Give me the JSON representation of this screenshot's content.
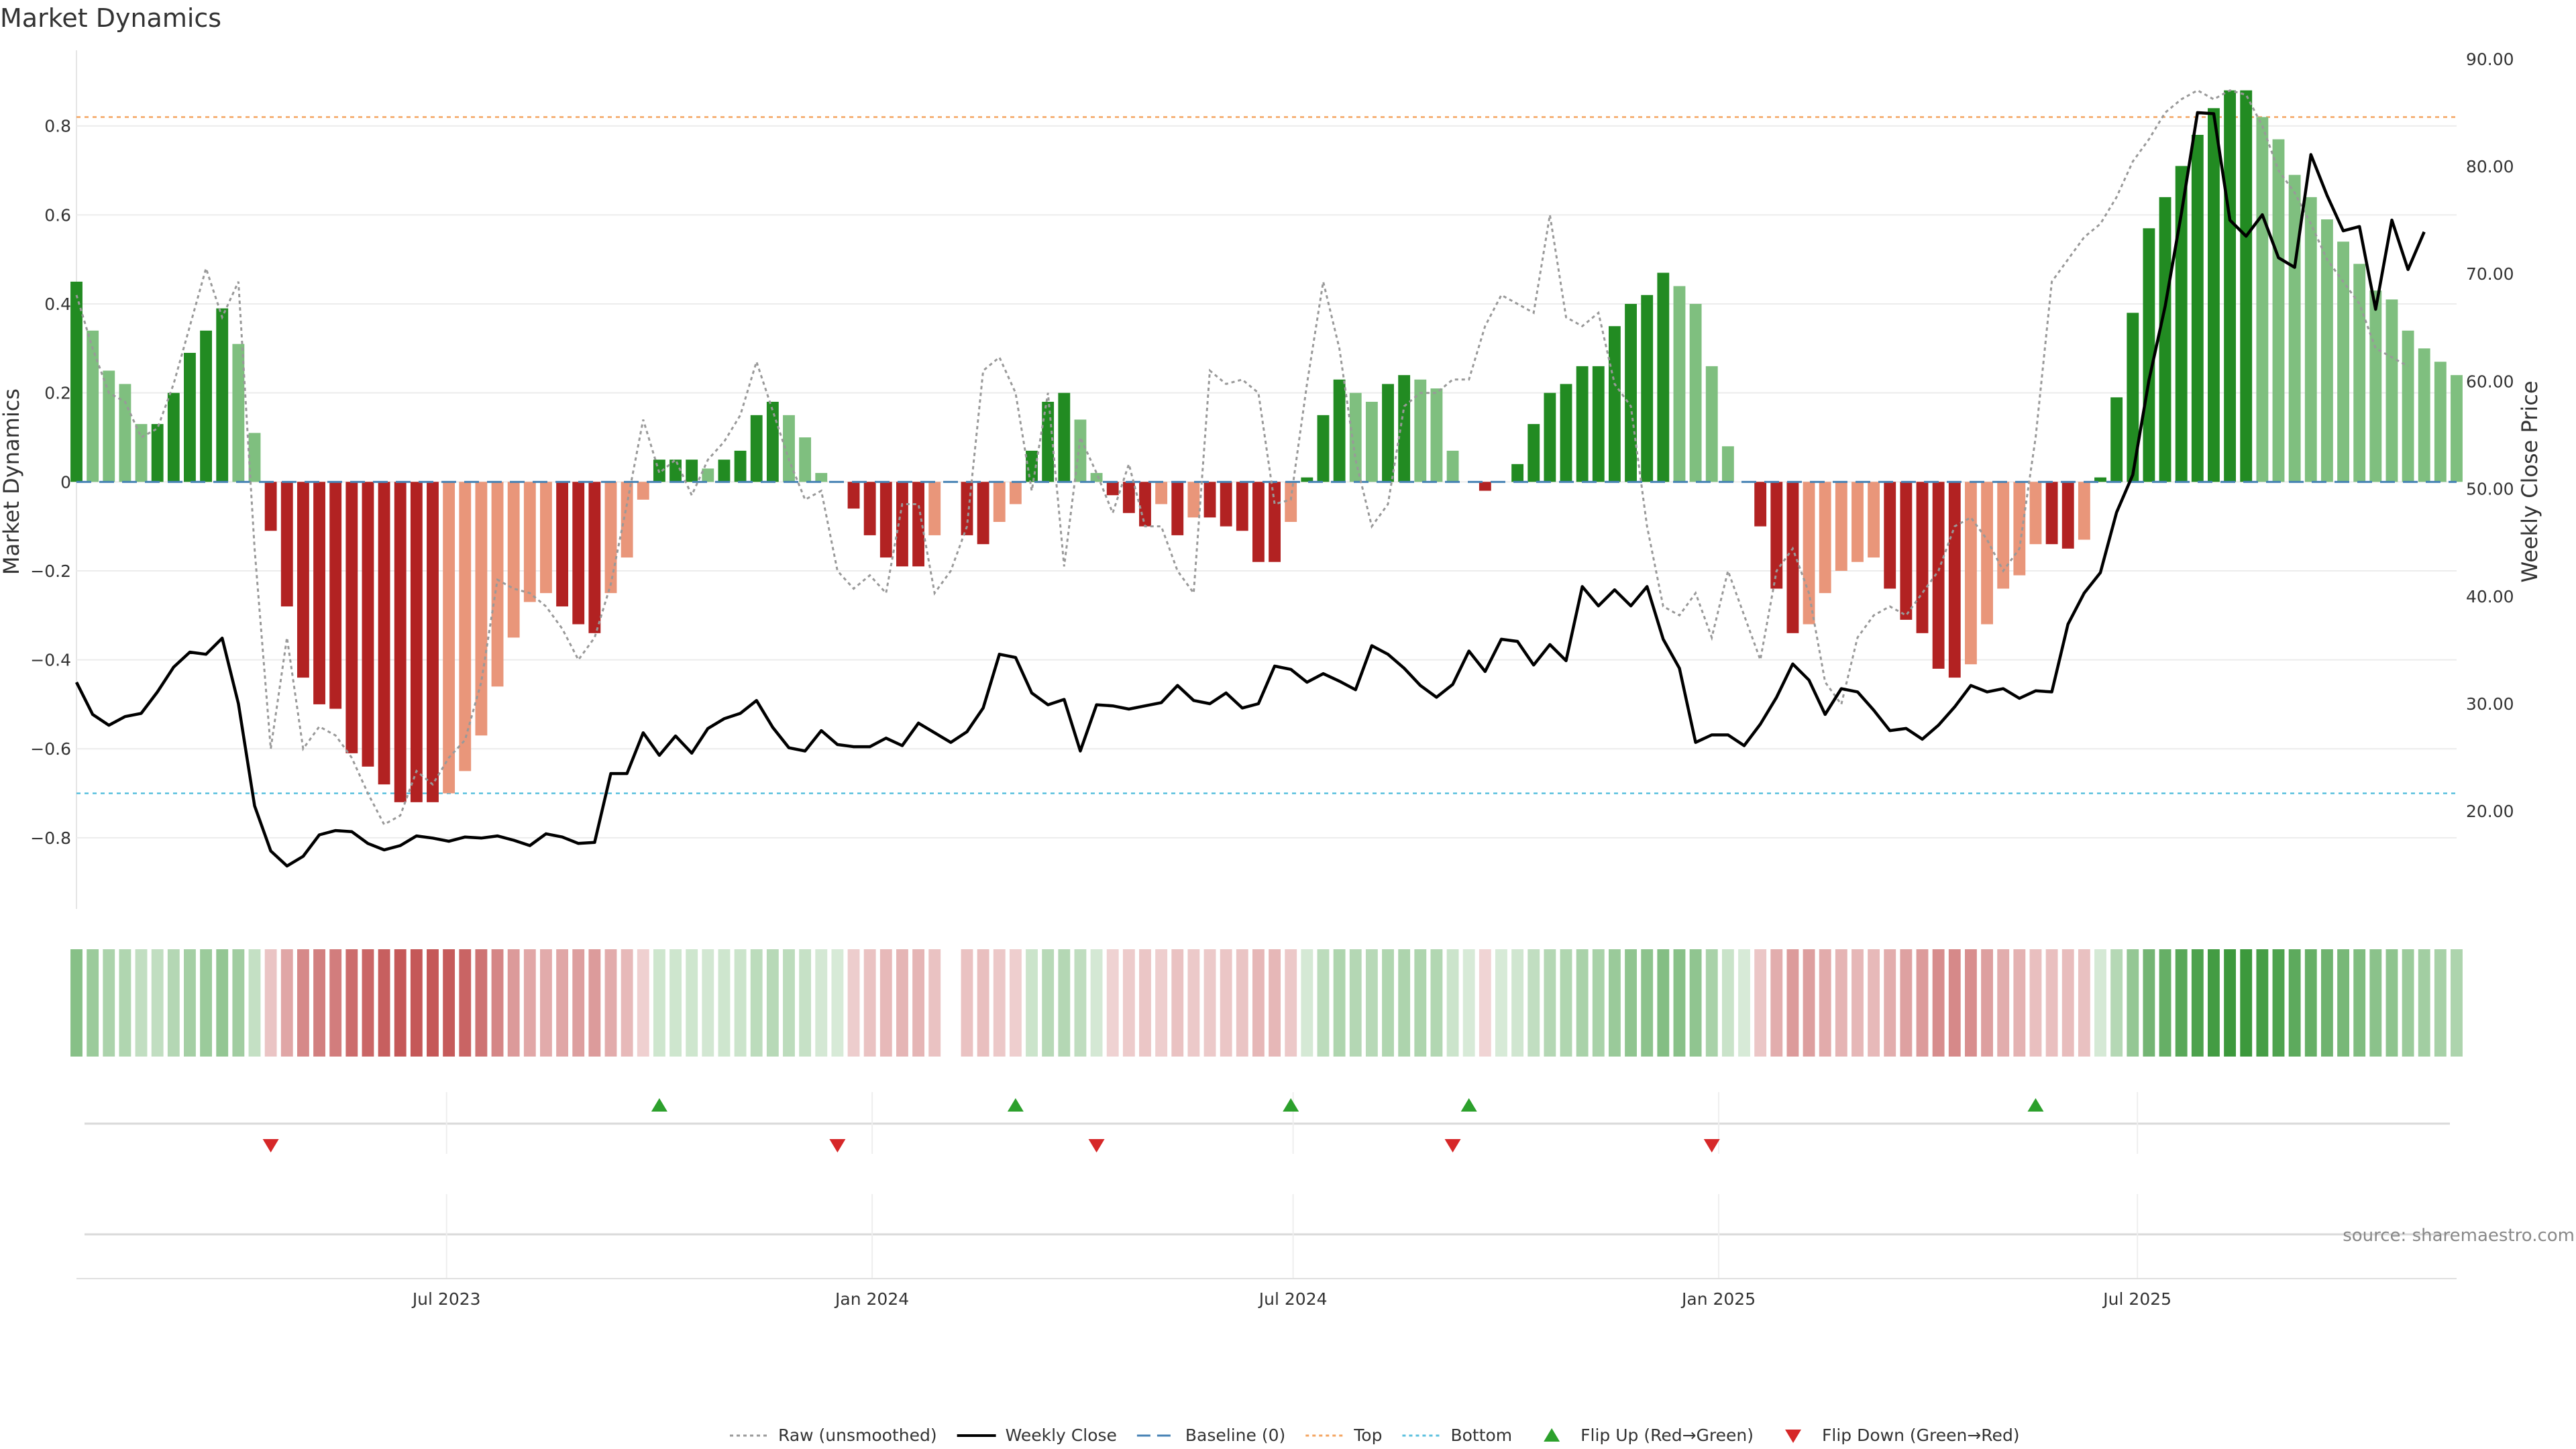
{
  "chart_data": {
    "type": "bar",
    "title": "Market Dynamics",
    "ylabel_left": "Market Dynamics",
    "ylabel_right": "Weekly Close Price",
    "ylim_left": [
      -0.96,
      0.97
    ],
    "ylim_right": [
      10.9,
      90.8
    ],
    "yticks_left": [
      "0.8",
      "0.6",
      "0.4",
      "0.2",
      "0",
      "−0.2",
      "−0.4",
      "−0.6",
      "−0.8"
    ],
    "yticks_left_values": [
      0.8,
      0.6,
      0.4,
      0.2,
      0,
      -0.2,
      -0.4,
      -0.6,
      -0.8
    ],
    "yticks_right": [
      "90.00",
      "80.00",
      "70.00",
      "60.00",
      "50.00",
      "40.00",
      "30.00",
      "20.00"
    ],
    "yticks_right_values": [
      90,
      80,
      70,
      60,
      50,
      40,
      30,
      20
    ],
    "x_start": "2023-01-22",
    "x_end": "2025-11-16",
    "x_ticks": [
      "Jul 2023",
      "Jan 2024",
      "Jul 2024",
      "Jan 2025",
      "Jul 2025"
    ],
    "x_tick_dates": [
      "2023-07-01",
      "2024-01-01",
      "2024-07-01",
      "2025-01-01",
      "2025-07-01"
    ],
    "week_start": "2023-01-22",
    "top_level": 0.82,
    "bottom_level": -0.7,
    "baseline": 0,
    "bar_values": [
      0.45,
      0.34,
      0.25,
      0.22,
      0.13,
      0.13,
      0.2,
      0.29,
      0.34,
      0.39,
      0.31,
      0.11,
      -0.11,
      -0.28,
      -0.44,
      -0.5,
      -0.51,
      -0.61,
      -0.64,
      -0.68,
      -0.72,
      -0.72,
      -0.72,
      -0.7,
      -0.65,
      -0.57,
      -0.46,
      -0.35,
      -0.27,
      -0.25,
      -0.28,
      -0.32,
      -0.34,
      -0.25,
      -0.17,
      -0.04,
      0.05,
      0.05,
      0.05,
      0.03,
      0.05,
      0.07,
      0.15,
      0.18,
      0.15,
      0.1,
      0.02,
      0,
      -0.06,
      -0.12,
      -0.17,
      -0.19,
      -0.19,
      -0.12,
      0,
      -0.12,
      -0.14,
      -0.09,
      -0.05,
      0.07,
      0.18,
      0.2,
      0.14,
      0.02,
      -0.03,
      -0.07,
      -0.1,
      -0.05,
      -0.12,
      -0.08,
      -0.08,
      -0.1,
      -0.11,
      -0.18,
      -0.18,
      -0.09,
      0.01,
      0.15,
      0.23,
      0.2,
      0.18,
      0.22,
      0.24,
      0.23,
      0.21,
      0.07,
      0,
      -0.02,
      0,
      0.04,
      0.13,
      0.2,
      0.22,
      0.26,
      0.26,
      0.35,
      0.4,
      0.42,
      0.47,
      0.44,
      0.4,
      0.26,
      0.08,
      0,
      -0.1,
      -0.24,
      -0.34,
      -0.32,
      -0.25,
      -0.2,
      -0.18,
      -0.17,
      -0.24,
      -0.31,
      -0.34,
      -0.42,
      -0.44,
      -0.41,
      -0.32,
      -0.24,
      -0.21,
      -0.14,
      -0.14,
      -0.15,
      -0.13,
      0.01,
      0.19,
      0.38,
      0.57,
      0.64,
      0.71,
      0.78,
      0.84,
      0.88,
      0.88,
      0.82,
      0.77,
      0.69,
      0.64,
      0.59,
      0.54,
      0.49,
      0.43,
      0.41,
      0.34,
      0.3,
      0.27,
      0.24
    ],
    "raw_values": [
      0.42,
      0.3,
      0.2,
      0.18,
      0.1,
      0.12,
      0.22,
      0.35,
      0.48,
      0.37,
      0.45,
      -0.15,
      -0.6,
      -0.35,
      -0.6,
      -0.55,
      -0.57,
      -0.62,
      -0.7,
      -0.77,
      -0.75,
      -0.65,
      -0.68,
      -0.62,
      -0.58,
      -0.45,
      -0.22,
      -0.24,
      -0.25,
      -0.28,
      -0.33,
      -0.4,
      -0.35,
      -0.23,
      -0.05,
      0.14,
      0.02,
      0.05,
      -0.03,
      0.05,
      0.09,
      0.15,
      0.27,
      0.16,
      0.05,
      -0.04,
      -0.02,
      -0.2,
      -0.24,
      -0.21,
      -0.25,
      -0.05,
      -0.05,
      -0.25,
      -0.2,
      -0.1,
      0.25,
      0.28,
      0.2,
      -0.02,
      0.2,
      -0.19,
      0.1,
      0.02,
      -0.07,
      0.04,
      -0.1,
      -0.1,
      -0.2,
      -0.25,
      0.25,
      0.22,
      0.23,
      0.2,
      -0.05,
      -0.04,
      0.22,
      0.45,
      0.3,
      0.05,
      -0.1,
      -0.05,
      0.17,
      0.2,
      0.2,
      0.23,
      0.23,
      0.35,
      0.42,
      0.4,
      0.38,
      0.6,
      0.37,
      0.35,
      0.38,
      0.22,
      0.17,
      -0.1,
      -0.28,
      -0.3,
      -0.25,
      -0.35,
      -0.2,
      -0.3,
      -0.4,
      -0.2,
      -0.15,
      -0.25,
      -0.45,
      -0.5,
      -0.35,
      -0.3,
      -0.28,
      -0.3,
      -0.25,
      -0.2,
      -0.1,
      -0.08,
      -0.13,
      -0.2,
      -0.15,
      0.1,
      0.45,
      0.5,
      0.55,
      0.58,
      0.64,
      0.72,
      0.77,
      0.83,
      0.86,
      0.88,
      0.86,
      0.88,
      0.87,
      0.8,
      0.7,
      0.65,
      0.58,
      0.5,
      0.45,
      0.4,
      0.3,
      0.28,
      0.26
    ],
    "close_values": [
      32.0,
      29.0,
      28.0,
      28.8,
      29.1,
      31.1,
      33.4,
      34.8,
      34.6,
      36.1,
      30.0,
      20.5,
      16.3,
      14.9,
      15.8,
      17.8,
      18.2,
      18.1,
      17.0,
      16.4,
      16.8,
      17.7,
      17.5,
      17.2,
      17.6,
      17.5,
      17.7,
      17.3,
      16.8,
      17.9,
      17.6,
      17.0,
      17.1,
      23.5,
      23.5,
      27.3,
      25.2,
      27.0,
      25.4,
      27.7,
      28.6,
      29.1,
      30.3,
      27.8,
      25.9,
      25.6,
      27.5,
      26.2,
      26.0,
      26.0,
      26.8,
      26.1,
      28.2,
      27.3,
      26.4,
      27.4,
      29.6,
      34.6,
      34.3,
      31.0,
      29.9,
      30.4,
      25.6,
      29.9,
      29.8,
      29.5,
      29.8,
      30.1,
      31.7,
      30.3,
      30.0,
      31.0,
      29.6,
      30.0,
      33.5,
      33.2,
      32.0,
      32.8,
      32.1,
      31.3,
      35.4,
      34.6,
      33.3,
      31.7,
      30.6,
      31.8,
      34.9,
      33.0,
      36.0,
      35.8,
      33.6,
      35.5,
      34.0,
      40.9,
      39.1,
      40.6,
      39.1,
      40.9,
      36.0,
      33.3,
      26.4,
      27.1,
      27.1,
      26.1,
      28.1,
      30.6,
      33.7,
      32.2,
      29.0,
      31.4,
      31.1,
      29.4,
      27.5,
      27.7,
      26.7,
      28.0,
      29.7,
      31.7,
      31.1,
      31.4,
      30.5,
      31.2,
      31.1,
      37.4,
      40.3,
      42.2,
      47.8,
      51.3,
      60.1,
      67.0,
      75.6,
      85.0,
      84.9,
      75.0,
      73.5,
      75.5,
      71.5,
      70.6,
      81.1,
      77.3,
      74.0,
      74.4,
      66.7,
      75.0,
      70.4,
      73.9
    ],
    "heat_missing_index": 54,
    "flip_up_weeks": [
      36,
      58,
      75,
      86,
      121
    ],
    "flip_down_weeks": [
      12,
      47,
      63,
      85,
      101
    ],
    "legend_position": "bottom",
    "grid": true
  },
  "legend": [
    {
      "label": "Raw (unsmoothed)",
      "color": "#999999",
      "kind": "line-dotted"
    },
    {
      "label": "Weekly Close",
      "color": "#000000",
      "kind": "line-solid"
    },
    {
      "label": "Baseline (0)",
      "color": "#4682b4",
      "kind": "line-dashed"
    },
    {
      "label": "Top",
      "color": "#f4a460",
      "kind": "line-dotted"
    },
    {
      "label": "Bottom",
      "color": "#5bc0de",
      "kind": "line-dotted"
    },
    {
      "label": "Flip Up (Red→Green)",
      "color": "#2ca02c",
      "kind": "triangle-up"
    },
    {
      "label": "Flip Down (Green→Red)",
      "color": "#d62728",
      "kind": "triangle-down"
    }
  ],
  "source_text": "source: sharemaestro.com",
  "colors": {
    "green_strong": "#228b22",
    "green_weak": "#7fbf7f",
    "red_strong": "#b22222",
    "red_weak": "#e9967a",
    "close_line": "#000000",
    "raw_line": "#999999",
    "top_line": "#f4a460",
    "bottom_line": "#5bc0de",
    "baseline": "#4682b4"
  }
}
